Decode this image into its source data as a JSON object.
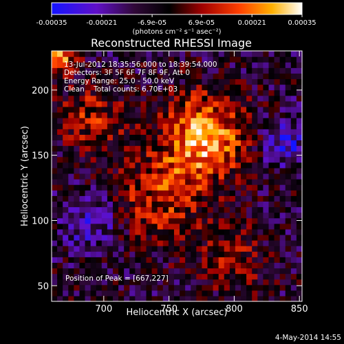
{
  "chart_data": {
    "type": "heatmap",
    "title": "Reconstructed RHESSI Image",
    "xlabel": "Heliocentric X (arcsec)",
    "ylabel": "Heliocentric Y (arcsec)",
    "xlim": [
      660,
      852
    ],
    "ylim": [
      38,
      230
    ],
    "x_ticks": [
      700,
      750,
      800,
      850
    ],
    "y_ticks": [
      50,
      100,
      150,
      200
    ],
    "colorbar": {
      "range": [
        -0.00035,
        0.00035
      ],
      "tick_values": [
        -0.00035,
        -0.00021,
        -6.9e-05,
        6.9e-05,
        0.00021,
        0.00035
      ],
      "tick_labels": [
        "-0.00035",
        "-0.00021",
        "-6.9e-05",
        "6.9e-05",
        "0.00021",
        "0.00035"
      ],
      "unit_label": "(photons cm⁻² s⁻¹ asec⁻²)",
      "colormap": "blue-purple-black-red-orange-yellow-white"
    },
    "info_lines": [
      "13-Jul-2012 18:35:56.000 to 18:39:54.000",
      "Detectors: 3F 5F 6F 7F 8F 9F, Att 0",
      "Energy Range: 25.0 - 50.0 keV",
      "Clean    Total counts: 6.70E+03"
    ],
    "peak_label": "Position of Peak = [667,227]",
    "peak": [
      667,
      227
    ],
    "features": [
      {
        "name": "main source",
        "x": 780,
        "y": 160,
        "level": 0.00034
      },
      {
        "name": "peak",
        "x": 667,
        "y": 227,
        "level": 0.00035
      }
    ]
  },
  "footer": {
    "date": "4-May-2014 14:55"
  }
}
